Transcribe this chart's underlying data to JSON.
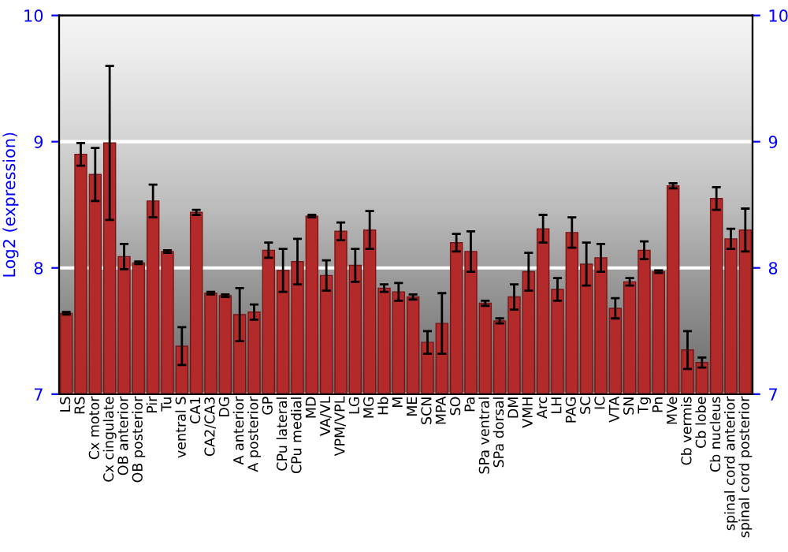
{
  "chart_data": {
    "type": "bar",
    "ylabel": "Log2 (expression)",
    "categories": [
      "LS",
      "RS",
      "Cx motor",
      "Cx cingulate",
      "OB anterior",
      "OB posterior",
      "Pir",
      "Tu",
      "ventral S",
      "CA1",
      "CA2/CA3",
      "DG",
      "A anterior",
      "A posterior",
      "GP",
      "CPu lateral",
      "CPu medial",
      "MD",
      "VA/VL",
      "VPM/VPL",
      "LG",
      "MG",
      "Hb",
      "M",
      "ME",
      "SCN",
      "MPA",
      "SO",
      "Pa",
      "SPa ventral",
      "SPa dorsal",
      "DM",
      "VMH",
      "Arc",
      "LH",
      "PAG",
      "SC",
      "IC",
      "VTA",
      "SN",
      "Tg",
      "Pn",
      "MVe",
      "Cb vermis",
      "Cb lobe",
      "Cb nucleus",
      "spinal cord anterior",
      "spinal cord posterior"
    ],
    "series": [
      {
        "color": "#b22a2a",
        "values": [
          7.64,
          8.9,
          8.74,
          8.99,
          8.09,
          8.04,
          8.53,
          8.13,
          7.38,
          8.44,
          7.8,
          7.78,
          7.63,
          7.65,
          8.14,
          7.98,
          8.05,
          8.41,
          7.94,
          8.29,
          8.02,
          8.3,
          7.84,
          7.81,
          7.77,
          7.41,
          7.56,
          8.2,
          8.13,
          7.72,
          7.58,
          7.77,
          7.97,
          8.31,
          7.83,
          8.28,
          8.03,
          8.08,
          7.68,
          7.89,
          8.14,
          7.97,
          8.65,
          7.35,
          7.25,
          8.55,
          8.23,
          8.3
        ],
        "errors": [
          0.01,
          0.09,
          0.21,
          0.61,
          0.1,
          0.01,
          0.13,
          0.01,
          0.15,
          0.02,
          0.01,
          0.01,
          0.21,
          0.06,
          0.06,
          0.17,
          0.18,
          0.01,
          0.12,
          0.07,
          0.13,
          0.15,
          0.03,
          0.07,
          0.02,
          0.09,
          0.24,
          0.07,
          0.16,
          0.02,
          0.02,
          0.1,
          0.15,
          0.11,
          0.09,
          0.12,
          0.17,
          0.11,
          0.08,
          0.03,
          0.07,
          0.01,
          0.02,
          0.15,
          0.04,
          0.09,
          0.08,
          0.17
        ]
      }
    ],
    "ylim": [
      7,
      10
    ],
    "yticks": [
      7,
      8,
      9,
      10
    ],
    "y2lim": [
      7,
      10
    ],
    "y2ticks": [
      7,
      8,
      9,
      10
    ],
    "grid": "y"
  }
}
